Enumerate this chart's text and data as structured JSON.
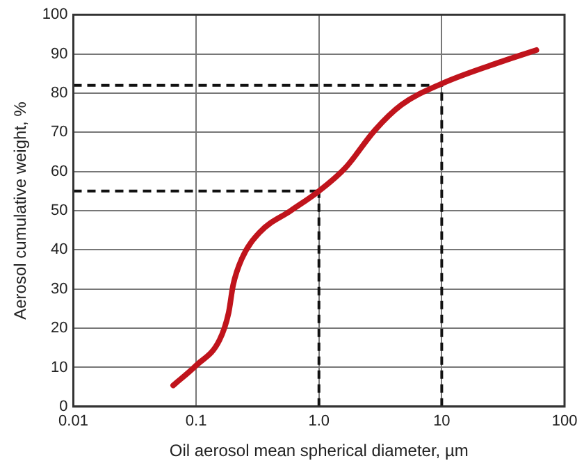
{
  "chart_data": {
    "type": "line",
    "xlabel": "Oil aerosol mean spherical diameter, µm",
    "ylabel": "Aerosol cumulative weight, %",
    "log": "x",
    "x": [
      0.065,
      0.1,
      0.155,
      0.184,
      0.2,
      0.235,
      0.33,
      0.59,
      1.0,
      1.65,
      2.85,
      4.7,
      10,
      24.5,
      59
    ],
    "series": [
      {
        "color": "#c0141c",
        "values": [
          5.4,
          10.5,
          17,
          24,
          31,
          37.7,
          44.5,
          50,
          55,
          61,
          70.5,
          77,
          82.4,
          87,
          91
        ]
      }
    ],
    "xlim": [
      0.01,
      100
    ],
    "xticks": [
      0.01,
      0.1,
      {
        "value": 1,
        "label": "1.0"
      },
      10,
      100
    ],
    "ylim": [
      0,
      100
    ],
    "yticks": [
      0,
      10,
      20,
      30,
      40,
      50,
      60,
      70,
      80,
      90,
      100
    ],
    "grid": true,
    "marker": "none",
    "line_style": "solid",
    "ref_lines": [
      {
        "axis": "y",
        "value": 55,
        "line_style": "dashed"
      },
      {
        "axis": "y",
        "value": 82,
        "line_style": "dashed"
      },
      {
        "axis": "x",
        "value": 1,
        "line_style": "dashed"
      },
      {
        "axis": "x",
        "value": 10,
        "line_style": "dashed"
      }
    ]
  }
}
